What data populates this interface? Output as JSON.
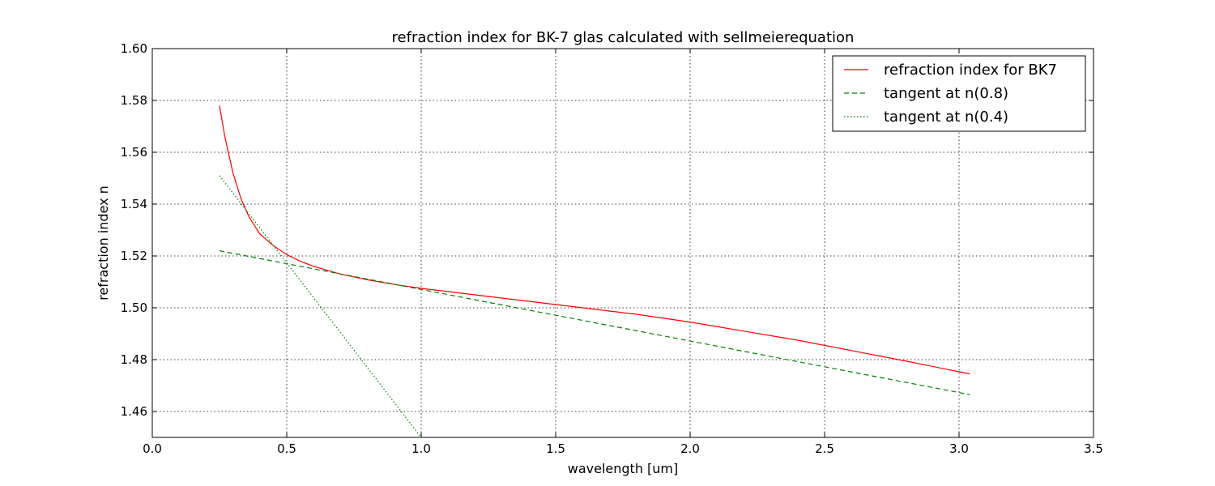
{
  "chart_data": {
    "type": "line",
    "title": "refraction index for BK-7 glas calculated with sellmeierequation",
    "xlabel": "wavelength [um]",
    "ylabel": "refraction index n",
    "xlim": [
      0.0,
      3.5
    ],
    "ylim": [
      1.45,
      1.6
    ],
    "xticks": [
      0.0,
      0.5,
      1.0,
      1.5,
      2.0,
      2.5,
      3.0,
      3.5
    ],
    "xtick_labels": [
      "0.0",
      "0.5",
      "1.0",
      "1.5",
      "2.0",
      "2.5",
      "3.0",
      "3.5"
    ],
    "yticks": [
      1.46,
      1.48,
      1.5,
      1.52,
      1.54,
      1.56,
      1.58,
      1.6
    ],
    "ytick_labels": [
      "1.46",
      "1.48",
      "1.50",
      "1.52",
      "1.54",
      "1.56",
      "1.58",
      "1.60"
    ],
    "grid": true,
    "legend_position": "top-right",
    "series": [
      {
        "name": "refraction index for BK7",
        "color": "#ff0000",
        "style": "solid",
        "x": [
          0.25,
          0.27,
          0.3,
          0.33,
          0.36,
          0.4,
          0.45,
          0.5,
          0.55,
          0.6,
          0.7,
          0.8,
          0.9,
          1.0,
          1.2,
          1.4,
          1.6,
          1.8,
          2.0,
          2.2,
          2.4,
          2.6,
          2.8,
          3.04
        ],
        "y": [
          1.578,
          1.566,
          1.552,
          1.542,
          1.535,
          1.5285,
          1.524,
          1.5205,
          1.518,
          1.516,
          1.513,
          1.5108,
          1.509,
          1.5075,
          1.505,
          1.5025,
          1.5,
          1.4975,
          1.4945,
          1.491,
          1.4875,
          1.4835,
          1.4795,
          1.4745
        ]
      },
      {
        "name": "tangent at n(0.8)",
        "color": "#008000",
        "style": "dashed",
        "x": [
          0.25,
          3.04
        ],
        "y": [
          1.522,
          1.4665
        ]
      },
      {
        "name": "tangent at n(0.4)",
        "color": "#008000",
        "style": "dotted",
        "x": [
          0.25,
          1.0
        ],
        "y": [
          1.551,
          1.45
        ]
      }
    ]
  }
}
